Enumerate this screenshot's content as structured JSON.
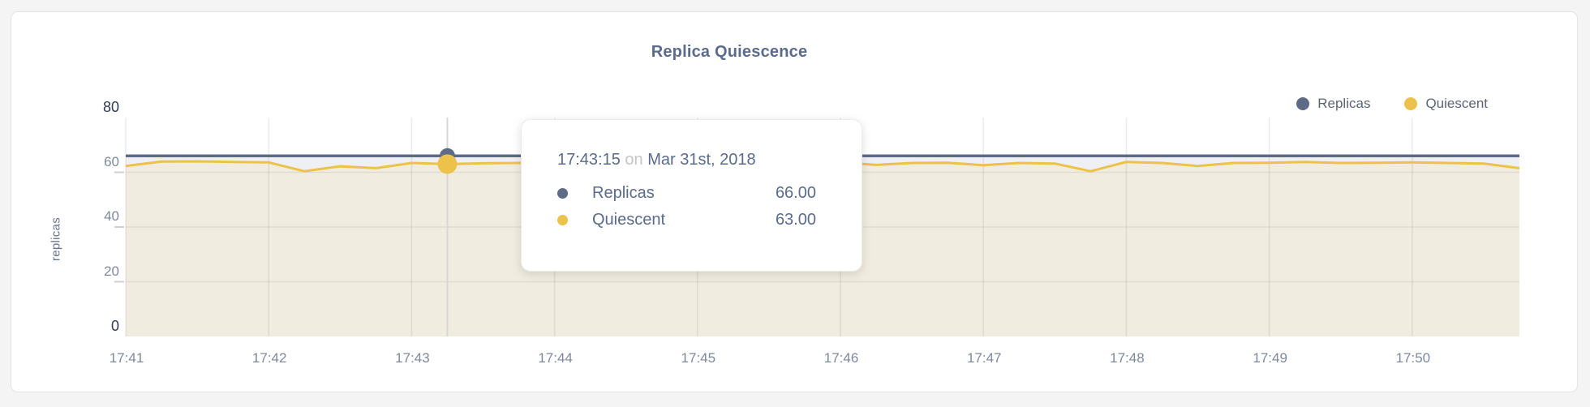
{
  "page": {
    "background": "#f4f4f5"
  },
  "header": {
    "title": "Replica Quiescence"
  },
  "legend": {
    "items": [
      {
        "label": "Replicas",
        "color": "#5e6b87"
      },
      {
        "label": "Quiescent",
        "color": "#ecc24a"
      }
    ]
  },
  "tooltip": {
    "time": "17:43:15",
    "conjunction": "on",
    "date": "Mar 31st, 2018",
    "rows": [
      {
        "label": "Replicas",
        "value": "66.00",
        "color": "#5e6b87"
      },
      {
        "label": "Quiescent",
        "value": "63.00",
        "color": "#ecc24a"
      }
    ]
  },
  "chart_data": {
    "type": "line",
    "title": "Replica Quiescence",
    "xlabel": "",
    "ylabel": "replicas",
    "ylim": [
      0,
      80
    ],
    "yticks": [
      0,
      20,
      40,
      60,
      80
    ],
    "xticks": [
      "17:41",
      "17:42",
      "17:43",
      "17:44",
      "17:45",
      "17:46",
      "17:47",
      "17:48",
      "17:49",
      "17:50"
    ],
    "grid": true,
    "legend_position": "top-right",
    "x": [
      "17:41:00",
      "17:41:15",
      "17:41:30",
      "17:41:45",
      "17:42:00",
      "17:42:15",
      "17:42:30",
      "17:42:45",
      "17:43:00",
      "17:43:15",
      "17:43:30",
      "17:43:45",
      "17:44:00",
      "17:44:15",
      "17:44:30",
      "17:44:45",
      "17:45:00",
      "17:45:15",
      "17:45:30",
      "17:45:45",
      "17:46:00",
      "17:46:15",
      "17:46:30",
      "17:46:45",
      "17:47:00",
      "17:47:15",
      "17:47:30",
      "17:47:45",
      "17:48:00",
      "17:48:15",
      "17:48:30",
      "17:48:45",
      "17:49:00",
      "17:49:15",
      "17:49:30",
      "17:49:45",
      "17:50:00",
      "17:50:15",
      "17:50:30",
      "17:50:45"
    ],
    "series": [
      {
        "name": "Replicas",
        "color": "#5e6b87",
        "fill": "rgba(94,107,135,0.10)",
        "values": [
          66,
          66,
          66,
          66,
          66,
          66,
          66,
          66,
          66,
          66,
          66,
          66,
          66,
          66,
          66,
          66,
          66,
          66,
          66,
          66,
          66,
          66,
          66,
          66,
          66,
          66,
          66,
          66,
          66,
          66,
          66,
          66,
          66,
          66,
          66,
          66,
          66,
          66,
          66,
          66
        ]
      },
      {
        "name": "Quiescent",
        "color": "#ecc24a",
        "fill": "#f0ecdf",
        "values": [
          62.3,
          63.9,
          64.0,
          63.8,
          63.6,
          60.4,
          62.2,
          61.5,
          63.4,
          63.0,
          63.3,
          63.4,
          63.6,
          63.2,
          62.6,
          63.5,
          63.6,
          63.4,
          63.5,
          63.3,
          63.6,
          62.7,
          63.4,
          63.5,
          62.6,
          63.4,
          63.2,
          60.4,
          63.8,
          63.4,
          62.3,
          63.4,
          63.5,
          63.8,
          63.4,
          63.5,
          63.6,
          63.4,
          63.2,
          61.5
        ]
      }
    ],
    "highlight": {
      "index": 9,
      "time": "17:43:15",
      "values": {
        "Replicas": 66.0,
        "Quiescent": 63.0
      }
    }
  }
}
